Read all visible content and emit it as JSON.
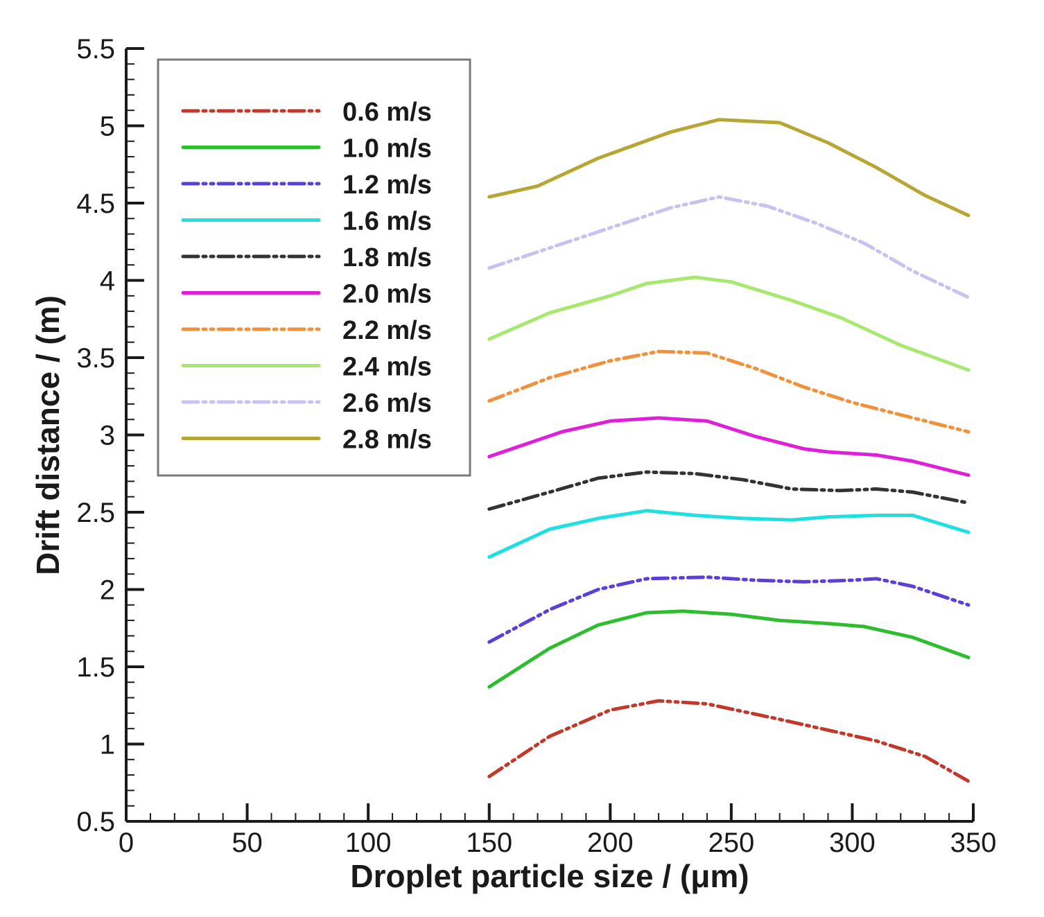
{
  "chart_data": {
    "type": "line",
    "title": "",
    "xlabel": "Droplet particle size / (μm)",
    "ylabel": "Drift distance / (m)",
    "xlim": [
      0,
      350
    ],
    "ylim": [
      0.5,
      5.5
    ],
    "x_ticks": [
      0,
      50,
      100,
      150,
      200,
      250,
      300,
      350
    ],
    "x_tick_labels": [
      "0",
      "50",
      "100",
      "150",
      "200",
      "250",
      "300",
      "350"
    ],
    "y_ticks": [
      0.5,
      1,
      1.5,
      2,
      2.5,
      3,
      3.5,
      4,
      4.5,
      5,
      5.5
    ],
    "y_tick_labels": [
      "0.5",
      "1",
      "1.5",
      "2",
      "2.5",
      "3",
      "3.5",
      "4",
      "4.5",
      "5",
      "5.5"
    ],
    "grid": false,
    "legend_position": "top-left",
    "series": [
      {
        "name": "0.6 m/s",
        "color": "#c0392b",
        "dash": "dash-dot-dot",
        "x": [
          150,
          175,
          200,
          220,
          240,
          270,
          290,
          310,
          330,
          348
        ],
        "y": [
          0.79,
          1.05,
          1.22,
          1.28,
          1.26,
          1.16,
          1.09,
          1.02,
          0.92,
          0.76
        ]
      },
      {
        "name": "1.0 m/s",
        "color": "#2ebd2e",
        "dash": "solid",
        "x": [
          150,
          175,
          195,
          215,
          230,
          250,
          270,
          290,
          305,
          325,
          348
        ],
        "y": [
          1.37,
          1.62,
          1.77,
          1.85,
          1.86,
          1.84,
          1.8,
          1.78,
          1.76,
          1.69,
          1.56
        ]
      },
      {
        "name": "1.2 m/s",
        "color": "#5b3fd6",
        "dash": "dash-dot-dot",
        "x": [
          150,
          175,
          195,
          215,
          240,
          260,
          280,
          300,
          310,
          325,
          348
        ],
        "y": [
          1.66,
          1.87,
          2.0,
          2.07,
          2.08,
          2.06,
          2.05,
          2.06,
          2.07,
          2.02,
          1.9
        ]
      },
      {
        "name": "1.6 m/s",
        "color": "#1ee0e0",
        "dash": "solid",
        "x": [
          150,
          175,
          195,
          215,
          235,
          255,
          275,
          290,
          310,
          325,
          348
        ],
        "y": [
          2.21,
          2.39,
          2.46,
          2.51,
          2.48,
          2.46,
          2.45,
          2.47,
          2.48,
          2.48,
          2.37
        ]
      },
      {
        "name": "1.8 m/s",
        "color": "#333333",
        "dash": "dash-dot-dot",
        "x": [
          150,
          175,
          195,
          215,
          235,
          255,
          275,
          295,
          310,
          325,
          348
        ],
        "y": [
          2.52,
          2.63,
          2.72,
          2.76,
          2.75,
          2.71,
          2.65,
          2.64,
          2.65,
          2.63,
          2.56
        ]
      },
      {
        "name": "2.0 m/s",
        "color": "#e020d8",
        "dash": "solid",
        "x": [
          150,
          180,
          200,
          220,
          240,
          260,
          280,
          290,
          310,
          325,
          348
        ],
        "y": [
          2.86,
          3.02,
          3.09,
          3.11,
          3.09,
          2.99,
          2.91,
          2.89,
          2.87,
          2.83,
          2.74
        ]
      },
      {
        "name": "2.2 m/s",
        "color": "#f0913c",
        "dash": "dash-dot-dot",
        "x": [
          150,
          175,
          200,
          220,
          240,
          260,
          280,
          300,
          320,
          348
        ],
        "y": [
          3.22,
          3.37,
          3.48,
          3.54,
          3.53,
          3.43,
          3.31,
          3.21,
          3.13,
          3.02
        ]
      },
      {
        "name": "2.4 m/s",
        "color": "#a6e870",
        "dash": "solid",
        "x": [
          150,
          175,
          200,
          215,
          235,
          250,
          275,
          295,
          320,
          348
        ],
        "y": [
          3.62,
          3.79,
          3.9,
          3.98,
          4.02,
          3.99,
          3.87,
          3.76,
          3.58,
          3.42
        ]
      },
      {
        "name": "2.6 m/s",
        "color": "#c9c2ef",
        "dash": "dash-dot-dot",
        "x": [
          150,
          175,
          200,
          225,
          245,
          265,
          285,
          305,
          325,
          348
        ],
        "y": [
          4.08,
          4.21,
          4.34,
          4.47,
          4.54,
          4.48,
          4.37,
          4.24,
          4.06,
          3.89
        ]
      },
      {
        "name": "2.8 m/s",
        "color": "#b8a634",
        "dash": "solid",
        "x": [
          150,
          170,
          195,
          225,
          245,
          270,
          290,
          310,
          330,
          348
        ],
        "y": [
          4.54,
          4.61,
          4.79,
          4.96,
          5.04,
          5.02,
          4.89,
          4.73,
          4.55,
          4.42
        ]
      }
    ]
  }
}
